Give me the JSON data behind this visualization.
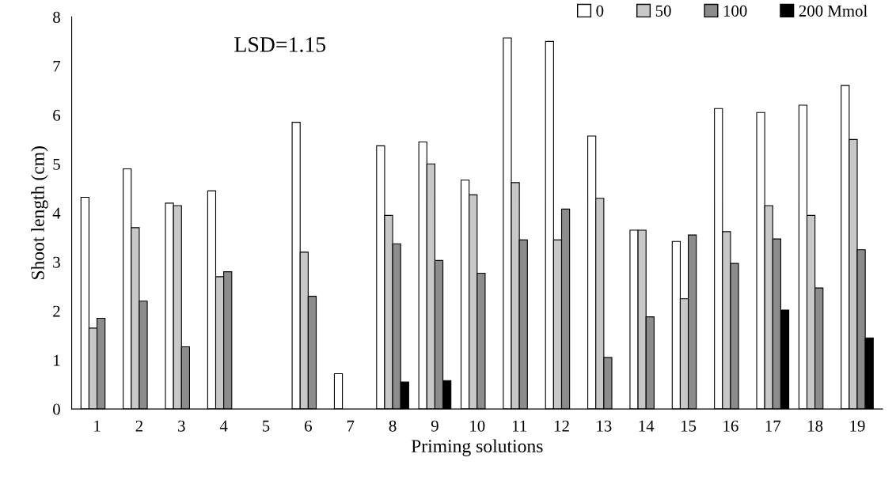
{
  "chart_data": {
    "type": "bar",
    "xlabel": "Priming solutions",
    "ylabel": "Shoot length (cm)",
    "categories": [
      "1",
      "2",
      "3",
      "4",
      "5",
      "6",
      "7",
      "8",
      "9",
      "10",
      "11",
      "12",
      "13",
      "14",
      "15",
      "16",
      "17",
      "18",
      "19"
    ],
    "series": [
      {
        "name": "0",
        "color": "#ffffff",
        "values": [
          4.32,
          4.9,
          4.2,
          4.45,
          null,
          5.85,
          0.72,
          5.37,
          5.45,
          4.67,
          7.57,
          7.5,
          5.57,
          3.65,
          3.42,
          6.13,
          6.05,
          6.2,
          6.6
        ]
      },
      {
        "name": "50",
        "color": "#c8c8c8",
        "values": [
          1.65,
          3.7,
          4.15,
          2.7,
          null,
          3.2,
          null,
          3.95,
          5.0,
          4.37,
          4.62,
          3.45,
          4.3,
          3.65,
          2.25,
          3.62,
          4.15,
          3.95,
          5.5
        ]
      },
      {
        "name": "100",
        "color": "#8c8c8c",
        "values": [
          1.85,
          2.2,
          1.27,
          2.8,
          null,
          2.3,
          null,
          3.37,
          3.03,
          2.77,
          3.45,
          4.08,
          1.05,
          1.88,
          3.55,
          2.97,
          3.47,
          2.47,
          3.25
        ]
      },
      {
        "name": "200 Mmol",
        "color": "#000000",
        "values": [
          null,
          null,
          null,
          null,
          null,
          null,
          null,
          0.55,
          0.58,
          null,
          null,
          null,
          null,
          null,
          null,
          null,
          2.02,
          null,
          1.45
        ]
      }
    ],
    "ylim": [
      0,
      8
    ],
    "yticks": [
      0,
      1,
      2,
      3,
      4,
      5,
      6,
      7,
      8
    ],
    "grid": false,
    "legend": "top right",
    "annotations": [
      "LSD=1.15"
    ]
  }
}
